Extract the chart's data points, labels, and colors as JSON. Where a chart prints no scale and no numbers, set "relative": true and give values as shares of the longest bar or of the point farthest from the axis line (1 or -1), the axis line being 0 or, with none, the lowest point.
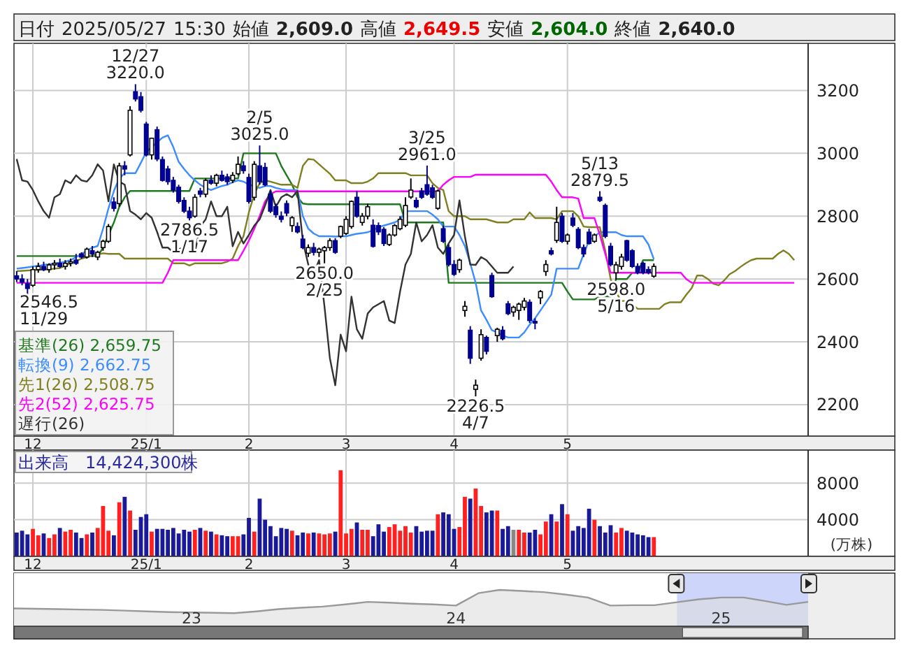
{
  "chart_data": [
    {
      "type": "candlestick",
      "title": "日付 2025/05/27 15:30 始値 2,609.0 高値 2,649.5 安値 2,604.0 終値 2,640.0",
      "categories": [
        null,
        null,
        null,
        "12",
        null,
        null,
        null,
        null,
        null,
        null,
        null,
        null,
        null,
        null,
        null,
        null,
        null,
        null,
        null,
        null,
        null,
        null,
        null,
        null,
        "25/1",
        null,
        null,
        null,
        null,
        null,
        null,
        null,
        null,
        null,
        null,
        null,
        null,
        null,
        null,
        null,
        null,
        null,
        null,
        "2",
        null,
        null,
        null,
        null,
        null,
        null,
        null,
        null,
        null,
        null,
        null,
        null,
        null,
        null,
        null,
        null,
        null,
        "3",
        null,
        null,
        null,
        null,
        null,
        null,
        null,
        null,
        null,
        null,
        null,
        null,
        null,
        null,
        null,
        null,
        null,
        null,
        null,
        "4",
        null,
        null,
        null,
        null,
        null,
        null,
        null,
        null,
        null,
        null,
        null,
        null,
        null,
        null,
        null,
        null,
        null,
        null,
        null,
        null,
        "5",
        null,
        null,
        null,
        null,
        null,
        null,
        null,
        null,
        null,
        null,
        null,
        null,
        null,
        null,
        null,
        null,
        null,
        null,
        null,
        null,
        null,
        null,
        null,
        null,
        null,
        null,
        null,
        null,
        null,
        null,
        null,
        null,
        null,
        null,
        null,
        null,
        null,
        null,
        null,
        null,
        null,
        null
      ],
      "ohlc": [
        [
          2610,
          2625,
          2590,
          2600
        ],
        [
          2600,
          2615,
          2580,
          2590
        ],
        [
          2585,
          2600,
          2546.5,
          2570
        ],
        [
          2580,
          2640,
          2575,
          2630
        ],
        [
          2630,
          2652,
          2620,
          2640
        ],
        [
          2640,
          2655,
          2625,
          2630
        ],
        [
          2630,
          2650,
          2620,
          2645
        ],
        [
          2645,
          2660,
          2630,
          2650
        ],
        [
          2650,
          2665,
          2635,
          2640
        ],
        [
          2640,
          2660,
          2630,
          2650
        ],
        [
          2650,
          2665,
          2640,
          2655
        ],
        [
          2660,
          2680,
          2645,
          2650
        ],
        [
          2680,
          2685,
          2665,
          2670
        ],
        [
          2670,
          2700,
          2665,
          2695
        ],
        [
          2690,
          2705,
          2670,
          2680
        ],
        [
          2670,
          2690,
          2660,
          2685
        ],
        [
          2700,
          2725,
          2690,
          2720
        ],
        [
          2720,
          2775,
          2715,
          2767
        ],
        [
          2845,
          2860,
          2815,
          2825
        ],
        [
          2840,
          2970,
          2830,
          2960
        ],
        [
          2960,
          2975,
          2930,
          2950
        ],
        [
          2995,
          3150,
          2990,
          3137
        ],
        [
          3196,
          3220,
          3165,
          3173
        ],
        [
          3180,
          3195,
          3130,
          3137
        ],
        [
          3093,
          3100,
          2990,
          2995
        ],
        [
          2995,
          3050,
          2980,
          3048
        ],
        [
          3075,
          3085,
          2975,
          2982
        ],
        [
          2980,
          2990,
          2910,
          2914
        ],
        [
          2950,
          2960,
          2900,
          2910
        ],
        [
          2914,
          2925,
          2875,
          2883
        ],
        [
          2892,
          2900,
          2840,
          2847
        ],
        [
          2850,
          2860,
          2810,
          2816
        ],
        [
          2816,
          2830,
          2786.5,
          2795
        ],
        [
          2800,
          2870,
          2795,
          2860
        ],
        [
          2880,
          2890,
          2860,
          2870
        ],
        [
          2870,
          2920,
          2860,
          2914
        ],
        [
          2914,
          2930,
          2900,
          2905
        ],
        [
          2905,
          2935,
          2895,
          2930
        ],
        [
          2930,
          2945,
          2910,
          2914
        ],
        [
          2925,
          2935,
          2900,
          2910
        ],
        [
          2914,
          2940,
          2905,
          2930
        ],
        [
          2935,
          2990,
          2930,
          2965
        ],
        [
          2960,
          2975,
          2935,
          2945
        ],
        [
          2923,
          2935,
          2840,
          2847
        ],
        [
          2860,
          2975,
          2850,
          2965
        ],
        [
          2960,
          3025,
          2900,
          2910
        ],
        [
          2955,
          2970,
          2895,
          2900
        ],
        [
          2870,
          2880,
          2810,
          2816
        ],
        [
          2830,
          2840,
          2795,
          2805
        ],
        [
          2800,
          2815,
          2780,
          2790
        ],
        [
          2840,
          2850,
          2800,
          2810
        ],
        [
          2770,
          2800,
          2750,
          2795
        ],
        [
          2767,
          2780,
          2745,
          2750
        ],
        [
          2727,
          2740,
          2695,
          2700
        ],
        [
          2682,
          2710,
          2670,
          2700
        ],
        [
          2700,
          2715,
          2675,
          2685
        ],
        [
          2685,
          2700,
          2670,
          2695
        ],
        [
          2690,
          2705,
          2650,
          2700
        ],
        [
          2700,
          2730,
          2690,
          2722
        ],
        [
          2722,
          2730,
          2680,
          2685
        ],
        [
          2736,
          2770,
          2730,
          2767
        ],
        [
          2745,
          2800,
          2740,
          2790
        ],
        [
          2767,
          2850,
          2760,
          2847
        ],
        [
          2860,
          2880,
          2795,
          2800
        ],
        [
          2780,
          2810,
          2770,
          2800
        ],
        [
          2800,
          2840,
          2790,
          2830
        ],
        [
          2771,
          2790,
          2700,
          2704
        ],
        [
          2770,
          2780,
          2740,
          2750
        ],
        [
          2758,
          2765,
          2705,
          2713
        ],
        [
          2710,
          2745,
          2705,
          2740
        ],
        [
          2740,
          2775,
          2735,
          2770
        ],
        [
          2760,
          2800,
          2755,
          2790
        ],
        [
          2771,
          2860,
          2765,
          2834
        ],
        [
          2861,
          2920,
          2855,
          2883
        ],
        [
          2850,
          2860,
          2825,
          2830
        ],
        [
          2880,
          2890,
          2855,
          2860
        ],
        [
          2900,
          2961,
          2865,
          2870
        ],
        [
          2890,
          2900,
          2855,
          2860
        ],
        [
          2825,
          2885,
          2820,
          2880
        ],
        [
          2760,
          2770,
          2715,
          2720
        ],
        [
          2700,
          2710,
          2640,
          2646
        ],
        [
          2646,
          2660,
          2610,
          2615
        ],
        [
          2630,
          2665,
          2620,
          2660
        ],
        [
          2500,
          2530,
          2480,
          2513
        ],
        [
          2437,
          2450,
          2330,
          2348
        ],
        [
          2249,
          2280,
          2226.5,
          2262
        ],
        [
          2348,
          2440,
          2340,
          2423
        ],
        [
          2414,
          2420,
          2360,
          2370
        ],
        [
          2611,
          2620,
          2540,
          2544
        ],
        [
          2420,
          2445,
          2400,
          2440
        ],
        [
          2437,
          2450,
          2405,
          2410
        ],
        [
          2521,
          2530,
          2485,
          2490
        ],
        [
          2495,
          2515,
          2480,
          2510
        ],
        [
          2500,
          2525,
          2470,
          2520
        ],
        [
          2510,
          2540,
          2500,
          2530
        ],
        [
          2526,
          2535,
          2460,
          2468
        ],
        [
          2465,
          2475,
          2440,
          2460
        ],
        [
          2540,
          2565,
          2520,
          2560
        ],
        [
          2624,
          2660,
          2610,
          2646
        ],
        [
          2690,
          2700,
          2675,
          2680
        ],
        [
          2723,
          2830,
          2715,
          2780
        ],
        [
          2800,
          2810,
          2715,
          2720
        ],
        [
          2720,
          2745,
          2710,
          2740
        ],
        [
          2794,
          2810,
          2765,
          2771
        ],
        [
          2758,
          2765,
          2695,
          2700
        ],
        [
          2700,
          2710,
          2670,
          2680
        ],
        [
          2749,
          2760,
          2710,
          2713
        ],
        [
          2720,
          2745,
          2715,
          2740
        ],
        [
          2860,
          2879.5,
          2845,
          2850
        ],
        [
          2834,
          2840,
          2730,
          2736
        ],
        [
          2704,
          2715,
          2640,
          2646
        ],
        [
          2620,
          2655,
          2598,
          2645
        ],
        [
          2640,
          2680,
          2630,
          2670
        ],
        [
          2722,
          2725,
          2655,
          2660
        ],
        [
          2690,
          2695,
          2635,
          2640
        ],
        [
          2640,
          2650,
          2615,
          2620
        ],
        [
          2650,
          2655,
          2615,
          2620
        ],
        [
          2630,
          2640,
          2615,
          2620
        ],
        [
          2609,
          2649.5,
          2604,
          2640
        ],
        null,
        null,
        null,
        null,
        null,
        null,
        null,
        null,
        null,
        null,
        null,
        null,
        null,
        null,
        null,
        null,
        null,
        null,
        null,
        null,
        null,
        null,
        null,
        null,
        null,
        null
      ],
      "series": [
        {
          "type": "line",
          "name": "基準(26) 2,659.75",
          "color": "#1f7a1f",
          "values": [
            2673,
            2673,
            2673,
            2673,
            2673,
            2673,
            2673,
            2673,
            2673,
            2673,
            2673,
            2673,
            2673,
            2673,
            2673,
            2673,
            2700,
            2740,
            2780,
            2830,
            2860,
            2880,
            2880,
            2880,
            2880,
            2880,
            2880,
            2880,
            2880,
            2880,
            2880,
            2880,
            2880,
            2920,
            2920,
            2920,
            2920,
            2920,
            2920,
            2920,
            2920,
            2920,
            3000,
            3000,
            3000,
            3000,
            3000,
            3000,
            3000,
            2960,
            2930,
            2900,
            2860,
            2840,
            2838,
            2838,
            2838,
            2838,
            2838,
            2838,
            2838,
            2838,
            2838,
            2838,
            2838,
            2838,
            2838,
            2838,
            2838,
            2838,
            2838,
            2838,
            2780,
            2780,
            2780,
            2780,
            2780,
            2780,
            2780,
            2780,
            2588,
            2588,
            2588,
            2588,
            2588,
            2588,
            2588,
            2588,
            2588,
            2588,
            2588,
            2588,
            2588,
            2588,
            2588,
            2588,
            2588,
            2588,
            2588,
            2588,
            2588,
            2588,
            2560,
            2535,
            2535,
            2535,
            2535,
            2535,
            2545,
            2545,
            2545,
            2600,
            2600,
            2600,
            2620,
            2620,
            2660,
            2660,
            2660,
            null,
            null,
            null,
            null,
            null,
            null,
            null,
            null,
            null,
            null,
            null,
            null,
            null,
            null,
            null,
            null,
            null,
            null,
            null,
            null,
            null,
            null,
            null,
            null,
            null,
            null
          ]
        },
        {
          "type": "line",
          "name": "転換(9) 2,662.75",
          "color": "#3c8cff",
          "values": [
            2633,
            2635,
            2637,
            2640,
            2642,
            2645,
            2647,
            2650,
            2652,
            2655,
            2660,
            2670,
            2680,
            2690,
            2700,
            2705,
            2760,
            2825,
            2880,
            2920,
            2937,
            2937,
            2937,
            2970,
            3004,
            3020,
            3035,
            3050,
            3057,
            3020,
            2973,
            2950,
            2930,
            2914,
            2900,
            2890,
            2883,
            2890,
            2896,
            2900,
            2908,
            2914,
            2910,
            2900,
            2896,
            2890,
            2896,
            2896,
            2890,
            2886,
            2883,
            2883,
            2883,
            2800,
            2760,
            2745,
            2736,
            2736,
            2736,
            2735,
            2736,
            2736,
            2740,
            2744,
            2746,
            2749,
            2755,
            2765,
            2770,
            2775,
            2780,
            2789,
            2816,
            2816,
            2816,
            2816,
            2816,
            2805,
            2790,
            2767,
            2767,
            2767,
            2740,
            2705,
            2650,
            2588,
            2500,
            2470,
            2437,
            2430,
            2420,
            2414,
            2414,
            2414,
            2430,
            2455,
            2475,
            2500,
            2525,
            2550,
            2633,
            2633,
            2633,
            2633,
            2633,
            2680,
            2722,
            2735,
            2749,
            2749,
            2749,
            2749,
            2740,
            2736,
            2736,
            2736,
            2736,
            2710,
            2663,
            null,
            null,
            null,
            null,
            null,
            null,
            null,
            null,
            null,
            null,
            null,
            null,
            null,
            null,
            null,
            null,
            null,
            null,
            null,
            null,
            null,
            null,
            null,
            null,
            null,
            null
          ]
        },
        {
          "type": "line",
          "name": "先1(26) 2,508.75",
          "color": "#808020",
          "values": [
            2625,
            2626,
            2627,
            2628,
            2629,
            2630,
            2631,
            2633,
            2635,
            2642,
            2650,
            2657,
            2665,
            2670,
            2675,
            2678,
            2682,
            2680,
            2680,
            2680,
            2665,
            2665,
            2665,
            2665,
            2665,
            2665,
            2665,
            2665,
            2665,
            2650,
            2650,
            2650,
            2643,
            2650,
            2650,
            2650,
            2650,
            2650,
            2650,
            2655,
            2665,
            2705,
            2736,
            2812,
            2870,
            2905,
            2914,
            2910,
            2905,
            2900,
            2900,
            2900,
            2890,
            2960,
            2982,
            2980,
            2965,
            2950,
            2935,
            2914,
            2914,
            2914,
            2905,
            2905,
            2905,
            2910,
            2920,
            2937,
            2937,
            2937,
            2937,
            2937,
            2937,
            2930,
            2930,
            2930,
            2930,
            2905,
            2890,
            2883,
            2816,
            2800,
            2800,
            2800,
            2790,
            2790,
            2790,
            2790,
            2785,
            2780,
            2780,
            2780,
            2790,
            2790,
            2790,
            2812,
            2794,
            2794,
            2794,
            2794,
            2790,
            2816,
            2816,
            2816,
            2800,
            2767,
            2765,
            2765,
            2765,
            2690,
            2600,
            2557,
            2530,
            2530,
            2520,
            2505,
            2505,
            2505,
            2505,
            2505,
            2520,
            2526,
            2526,
            2526,
            2550,
            2571,
            2611,
            2611,
            2600,
            2585,
            2580,
            2595,
            2615,
            2625,
            2638,
            2650,
            2660,
            2665,
            2665,
            2665,
            2665,
            2680,
            2691,
            2680,
            2660
          ]
        },
        {
          "type": "line",
          "name": "先2(52) 2,625.75",
          "color": "#ff00ff",
          "values": [
            2588,
            2588,
            2588,
            2588,
            2588,
            2588,
            2588,
            2588,
            2588,
            2588,
            2588,
            2588,
            2588,
            2588,
            2588,
            2588,
            2588,
            2588,
            2588,
            2588,
            2588,
            2588,
            2588,
            2588,
            2588,
            2588,
            2588,
            2588,
            2620,
            2660,
            2660,
            2660,
            2660,
            2660,
            2660,
            2660,
            2660,
            2660,
            2660,
            2660,
            2660,
            2660,
            2690,
            2722,
            2760,
            2800,
            2847,
            2870,
            2879,
            2879,
            2879,
            2879,
            2879,
            2879,
            2879,
            2879,
            2879,
            2879,
            2879,
            2879,
            2879,
            2879,
            2879,
            2879,
            2879,
            2879,
            2879,
            2879,
            2879,
            2879,
            2879,
            2879,
            2879,
            2879,
            2879,
            2879,
            2879,
            2879,
            2879,
            2900,
            2914,
            2925,
            2925,
            2925,
            2925,
            2932,
            2932,
            2932,
            2932,
            2932,
            2932,
            2932,
            2932,
            2932,
            2932,
            2932,
            2932,
            2932,
            2932,
            2910,
            2883,
            2860,
            2860,
            2860,
            2856,
            2794,
            2794,
            2794,
            2740,
            2680,
            2620,
            2620,
            2620,
            2620,
            2620,
            2620,
            2620,
            2620,
            2620,
            2620,
            2620,
            2620,
            2620,
            2620,
            2600,
            2588,
            2588,
            2588,
            2588,
            2588,
            2588,
            2588,
            2588,
            2588,
            2588,
            2588,
            2588,
            2588,
            2588,
            2588,
            2588,
            2588,
            2588,
            2588,
            2588
          ]
        },
        {
          "type": "line",
          "name": "遅行(26)",
          "color": "#333333",
          "values": [
            2982,
            2914,
            2910,
            2883,
            2847,
            2816,
            2795,
            2860,
            2870,
            2914,
            2905,
            2930,
            2914,
            2910,
            2930,
            2965,
            2945,
            2847,
            2965,
            2910,
            2900,
            2816,
            2805,
            2790,
            2810,
            2795,
            2750,
            2700,
            2700,
            2685,
            2695,
            2700,
            2722,
            2685,
            2767,
            2790,
            2847,
            2800,
            2800,
            2830,
            2704,
            2750,
            2713,
            2740,
            2770,
            2790,
            2834,
            2883,
            2830,
            2860,
            2870,
            2860,
            2880,
            2720,
            2646,
            2615,
            2660,
            2513,
            2348,
            2262,
            2423,
            2370,
            2544,
            2440,
            2410,
            2490,
            2510,
            2520,
            2530,
            2468,
            2460,
            2560,
            2646,
            2680,
            2780,
            2720,
            2740,
            2771,
            2700,
            2680,
            2713,
            2740,
            2850,
            2736,
            2646,
            2645,
            2670,
            2660,
            2640,
            2620,
            2620,
            2620,
            2640,
            null,
            null,
            null,
            null,
            null,
            null,
            null,
            null,
            null,
            null,
            null,
            null,
            null,
            null,
            null,
            null,
            null,
            null,
            null,
            null,
            null,
            null,
            null,
            null,
            null,
            null,
            null,
            null,
            null,
            null,
            null,
            null,
            null,
            null,
            null,
            null,
            null,
            null,
            null,
            null,
            null,
            null,
            null,
            null,
            null,
            null,
            null,
            null,
            null,
            null,
            null,
            null
          ]
        }
      ],
      "ylim": [
        2100,
        3350
      ],
      "yticks": [
        2200,
        2400,
        2600,
        2800,
        3000,
        3200
      ],
      "grid": true,
      "legend": "bottom left",
      "annotations": [
        {
          "text": "12/27\n3220.0",
          "y": 3220
        },
        {
          "text": "2/5\n3025.0",
          "y": 3025
        },
        {
          "text": "3/25\n2961.0",
          "y": 2961
        },
        {
          "text": "5/13\n2879.5",
          "y": 2879.5
        },
        "2546.5\n11/29",
        {
          "text": "2786.5\n1/17",
          "y": 2786.5
        },
        {
          "text": "2650.0\n2/25",
          "y": 2650
        },
        {
          "text": "2226.5\n4/7",
          "y": 2226.5
        },
        {
          "text": "2598.0\n5/16",
          "y": 2598
        }
      ]
    },
    {
      "type": "bar",
      "title": "出来高　14,424,300株",
      "ylabel": "(万株)",
      "categories": [
        null,
        null,
        null,
        "12",
        null,
        null,
        null,
        null,
        null,
        null,
        null,
        null,
        null,
        null,
        null,
        null,
        null,
        null,
        null,
        null,
        null,
        null,
        null,
        null,
        "25/1",
        null,
        null,
        null,
        null,
        null,
        null,
        null,
        null,
        null,
        null,
        null,
        null,
        null,
        null,
        null,
        null,
        null,
        null,
        "2",
        null,
        null,
        null,
        null,
        null,
        null,
        null,
        null,
        null,
        null,
        null,
        null,
        null,
        null,
        null,
        null,
        null,
        "3",
        null,
        null,
        null,
        null,
        null,
        null,
        null,
        null,
        null,
        null,
        null,
        null,
        null,
        null,
        null,
        null,
        null,
        null,
        null,
        "4",
        null,
        null,
        null,
        null,
        null,
        null,
        null,
        null,
        null,
        null,
        null,
        null,
        null,
        null,
        null,
        null,
        null,
        null,
        null,
        null,
        "5",
        null,
        null,
        null,
        null,
        null,
        null,
        null,
        null,
        null,
        null,
        null,
        null,
        null,
        null,
        null,
        null,
        null,
        null,
        null,
        null,
        null,
        null,
        null,
        null,
        null,
        null,
        null,
        null,
        null,
        null,
        null,
        null,
        null,
        null,
        null,
        null,
        null,
        null,
        null,
        null,
        null,
        null
      ],
      "values": [
        2600,
        2800,
        2400,
        3000,
        2300,
        2500,
        2000,
        2400,
        3100,
        2700,
        2900,
        2600,
        2000,
        2400,
        2600,
        3100,
        5500,
        2800,
        2300,
        5900,
        6500,
        5000,
        2900,
        4300,
        4600,
        2700,
        3000,
        3000,
        2900,
        3100,
        2500,
        2900,
        2700,
        2900,
        3100,
        2800,
        2700,
        2400,
        2300,
        2200,
        2200,
        2200,
        2400,
        4200,
        2700,
        6300,
        4000,
        3300,
        2200,
        3100,
        3000,
        2800,
        2300,
        2600,
        2500,
        2600,
        2500,
        2400,
        2500,
        2700,
        9400,
        2500,
        3000,
        3700,
        2900,
        2900,
        2200,
        3500,
        2700,
        3200,
        3500,
        2800,
        3300,
        2600,
        3300,
        2700,
        2800,
        2800,
        4600,
        4800,
        4600,
        3000,
        3200,
        6500,
        6300,
        7400,
        5500,
        4800,
        5000,
        5000,
        3000,
        3300,
        2900,
        2900,
        2600,
        2600,
        2900,
        2400,
        3800,
        4600,
        3800,
        5700,
        4600,
        2800,
        3300,
        3100,
        5200,
        4000,
        3300,
        2600,
        3400,
        2600,
        3100,
        2800,
        2600,
        2400,
        2300,
        2100,
        2100,
        null,
        null,
        null,
        null,
        null,
        null,
        null,
        null,
        null,
        null,
        null,
        null,
        null,
        null,
        null,
        null,
        null,
        null,
        null,
        null,
        null,
        null,
        null,
        null,
        null,
        null
      ],
      "colors": [
        "#1a1a99",
        "#1a1a99",
        "#1a1a99",
        "#ff2020",
        "#ff2020",
        "#1a1a99",
        "#ff2020",
        "#ff2020",
        "#1a1a99",
        "#ff2020",
        "#ff2020",
        "#1a1a99",
        "#1a1a99",
        "#ff2020",
        "#1a1a99",
        "#ff2020",
        "#ff2020",
        "#ff2020",
        "#1a1a99",
        "#ff2020",
        "#1a1a99",
        "#ff2020",
        "#1a1a99",
        "#1a1a99",
        "#1a1a99",
        "#ff2020",
        "#1a1a99",
        "#1a1a99",
        "#1a1a99",
        "#1a1a99",
        "#1a1a99",
        "#1a1a99",
        "#1a1a99",
        "#ff2020",
        "#1a1a99",
        "#ff2020",
        "#1a1a99",
        "#ff2020",
        "#1a1a99",
        "#1a1a99",
        "#ff2020",
        "#ff2020",
        "#1a1a99",
        "#1a1a99",
        "#ff2020",
        "#1a1a99",
        "#1a1a99",
        "#1a1a99",
        "#1a1a99",
        "#1a1a99",
        "#1a1a99",
        "#ff2020",
        "#1a1a99",
        "#1a1a99",
        "#ff2020",
        "#1a1a99",
        "#ff2020",
        "#ff2020",
        "#ff2020",
        "#1a1a99",
        "#ff2020",
        "#ff2020",
        "#ff2020",
        "#1a1a99",
        "#ff2020",
        "#ff2020",
        "#1a1a99",
        "#1a1a99",
        "#1a1a99",
        "#ff2020",
        "#ff2020",
        "#ff2020",
        "#ff2020",
        "#ff2020",
        "#1a1a99",
        "#1a1a99",
        "#1a1a99",
        "#1a1a99",
        "#ff2020",
        "#1a1a99",
        "#1a1a99",
        "#1a1a99",
        "#ff2020",
        "#ff2020",
        "#1a1a99",
        "#ff2020",
        "#ff2020",
        "#1a1a99",
        "#1a1a99",
        "#ff2020",
        "#1a1a99",
        "#1a1a99",
        "#888888",
        "#ff2020",
        "#ff2020",
        "#1a1a99",
        "#1a1a99",
        "#ff2020",
        "#ff2020",
        "#1a1a99",
        "#ff2020",
        "#1a1a99",
        "#ff2020",
        "#1a1a99",
        "#1a1a99",
        "#1a1a99",
        "#1a1a99",
        "#ff2020",
        "#1a1a99",
        "#1a1a99",
        "#1a1a99",
        "#ff2020",
        "#ff2020",
        "#1a1a99",
        "#1a1a99",
        "#1a1a99",
        "#1a1a99",
        "#1a1a99",
        "#ff2020",
        null,
        null,
        null,
        null,
        null,
        null,
        null,
        null,
        null,
        null,
        null,
        null,
        null,
        null,
        null,
        null,
        null,
        null,
        null,
        null,
        null,
        null,
        null,
        null,
        null,
        null
      ],
      "ylim": [
        0,
        11600
      ],
      "yticks": [
        4000,
        8000
      ],
      "grid": true
    },
    {
      "type": "area",
      "relative": true,
      "color": "#999999",
      "tick_labels": "x",
      "x": [
        "2022-05",
        "2022-06",
        "2022-07",
        "2022-08",
        "2022-09",
        "2022-10",
        "2022-11",
        "2022-12",
        "2023-01",
        "2023-02",
        "2023-03",
        "2023-04",
        "2023-05",
        "2023-06",
        "2023-07",
        "2023-08",
        "2023-09",
        "2023-10",
        "2023-11",
        "2023-12",
        "2024-01",
        "2024-02",
        "2024-03",
        "2024-04",
        "2024-05",
        "2024-06",
        "2024-07",
        "2024-08",
        "2024-09",
        "2024-10",
        "2024-11",
        "2024-12",
        "2025-01",
        "2025-02",
        "2025-03",
        "2025-04",
        "2025-05"
      ],
      "values": [
        0.49,
        0.48,
        0.47,
        0.46,
        0.45,
        0.43,
        0.41,
        0.39,
        0.38,
        0.37,
        0.36,
        0.41,
        0.47,
        0.51,
        0.54,
        0.6,
        0.67,
        0.65,
        0.62,
        0.6,
        0.57,
        0.91,
        1,
        0.97,
        0.94,
        0.87,
        0.79,
        0.57,
        0.58,
        0.58,
        0.66,
        0.74,
        0.79,
        0.79,
        0.7,
        0.59,
        0.67
      ],
      "xlim": [
        "2022-05",
        "2025-05"
      ],
      "xticks": [
        {
          "value": "2023-01",
          "label": "23"
        },
        {
          "value": "2024-01",
          "label": "24"
        },
        {
          "value": "2025-01",
          "label": "25"
        }
      ],
      "bands": [
        {
          "axis": "x",
          "from": "2024-11",
          "to": "2025-05",
          "color": "#b8c4f8"
        }
      ]
    }
  ]
}
